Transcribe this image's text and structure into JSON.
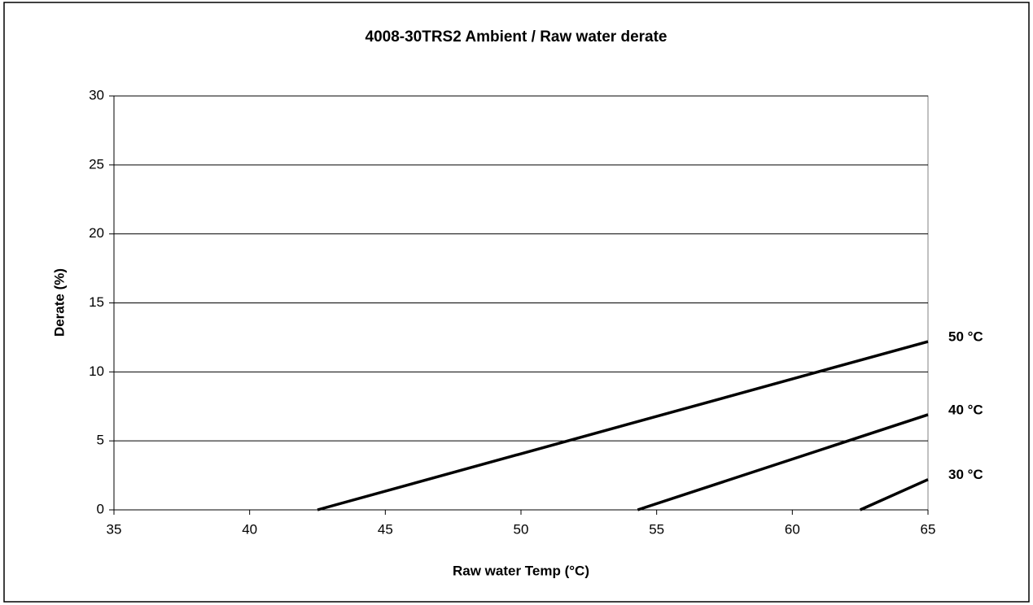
{
  "chart_data": {
    "type": "line",
    "title": "4008-30TRS2 Ambient / Raw water derate",
    "x_label": "Raw water Temp (°C)",
    "y_label": "Derate (%)",
    "series": [
      {
        "name": "50 °C",
        "color": "#000000",
        "x": [
          42.5,
          65
        ],
        "values": [
          0,
          12.2
        ]
      },
      {
        "name": "40 °C",
        "color": "#000000",
        "x": [
          54.3,
          65
        ],
        "values": [
          0,
          6.9
        ]
      },
      {
        "name": "30 °C",
        "color": "#000000",
        "x": [
          62.5,
          65
        ],
        "values": [
          0,
          2.2
        ]
      }
    ],
    "xlim": [
      35,
      65
    ],
    "xticks": [
      35,
      40,
      45,
      50,
      55,
      60,
      65
    ],
    "ylim": [
      0,
      30
    ],
    "yticks": [
      0,
      5,
      10,
      15,
      20,
      25,
      30
    ],
    "grid": true
  }
}
